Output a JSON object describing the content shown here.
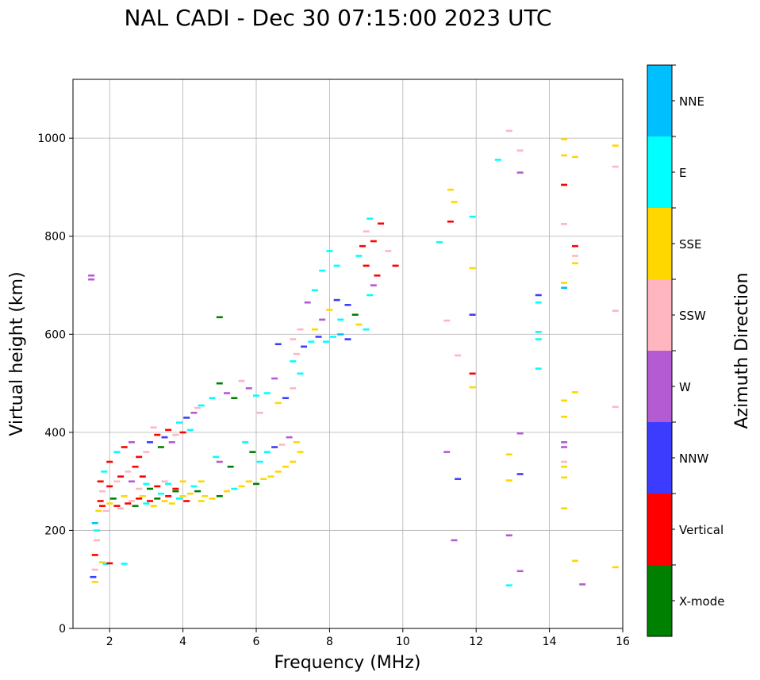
{
  "chart_data": {
    "type": "scatter",
    "title": "NAL CADI - Dec 30 07:15:00 2023 UTC",
    "xlabel": "Frequency (MHz)",
    "ylabel": "Virtual height (km)",
    "xlim": [
      1,
      16
    ],
    "ylim": [
      0,
      1120
    ],
    "xticks": [
      2,
      4,
      6,
      8,
      10,
      12,
      14,
      16
    ],
    "yticks": [
      0,
      200,
      400,
      600,
      800,
      1000
    ],
    "grid": true,
    "colorbar": {
      "label": "Azimuth Direction",
      "categories": [
        "X-mode",
        "Vertical",
        "NNW",
        "W",
        "SSW",
        "SSE",
        "E",
        "NNE"
      ],
      "colors": [
        "#008000",
        "#ff0000",
        "#3c3cff",
        "#b45ad2",
        "#ffb6c1",
        "#ffd700",
        "#00ffff",
        "#00bfff"
      ]
    },
    "points": [
      [
        1.5,
        720,
        3
      ],
      [
        1.5,
        712,
        3
      ],
      [
        1.55,
        105,
        2
      ],
      [
        1.6,
        95,
        5
      ],
      [
        1.6,
        120,
        4
      ],
      [
        1.6,
        150,
        1
      ],
      [
        1.65,
        180,
        4
      ],
      [
        1.65,
        200,
        6
      ],
      [
        1.6,
        215,
        7
      ],
      [
        1.7,
        240,
        5
      ],
      [
        1.75,
        260,
        1
      ],
      [
        1.8,
        280,
        4
      ],
      [
        1.75,
        300,
        1
      ],
      [
        1.85,
        320,
        6
      ],
      [
        1.8,
        135,
        5
      ],
      [
        1.9,
        132,
        6
      ],
      [
        2.0,
        133,
        1
      ],
      [
        2.4,
        132,
        6
      ],
      [
        1.8,
        250,
        1
      ],
      [
        1.9,
        240,
        4
      ],
      [
        2.0,
        255,
        5
      ],
      [
        2.1,
        265,
        0
      ],
      [
        2.2,
        250,
        1
      ],
      [
        2.3,
        245,
        4
      ],
      [
        2.4,
        270,
        5
      ],
      [
        2.5,
        255,
        1
      ],
      [
        2.6,
        260,
        4
      ],
      [
        2.7,
        250,
        0
      ],
      [
        2.8,
        265,
        1
      ],
      [
        2.9,
        270,
        5
      ],
      [
        3.0,
        255,
        6
      ],
      [
        3.1,
        260,
        1
      ],
      [
        3.2,
        250,
        5
      ],
      [
        3.3,
        265,
        0
      ],
      [
        3.4,
        275,
        6
      ],
      [
        3.5,
        260,
        5
      ],
      [
        3.6,
        270,
        1
      ],
      [
        3.7,
        255,
        5
      ],
      [
        3.8,
        280,
        0
      ],
      [
        3.9,
        265,
        6
      ],
      [
        4.0,
        270,
        5
      ],
      [
        4.1,
        260,
        1
      ],
      [
        4.2,
        275,
        5
      ],
      [
        4.3,
        290,
        6
      ],
      [
        4.4,
        280,
        0
      ],
      [
        4.5,
        300,
        5
      ],
      [
        4.6,
        270,
        5
      ],
      [
        2.0,
        290,
        1
      ],
      [
        2.2,
        300,
        4
      ],
      [
        2.3,
        310,
        1
      ],
      [
        2.5,
        320,
        4
      ],
      [
        2.6,
        300,
        3
      ],
      [
        2.7,
        330,
        1
      ],
      [
        2.8,
        285,
        4
      ],
      [
        2.9,
        310,
        1
      ],
      [
        3.0,
        295,
        6
      ],
      [
        3.1,
        285,
        0
      ],
      [
        3.3,
        290,
        1
      ],
      [
        3.5,
        300,
        4
      ],
      [
        3.6,
        295,
        6
      ],
      [
        3.8,
        285,
        1
      ],
      [
        4.0,
        300,
        5
      ],
      [
        2.0,
        340,
        1
      ],
      [
        2.2,
        360,
        6
      ],
      [
        2.4,
        370,
        1
      ],
      [
        2.6,
        380,
        3
      ],
      [
        2.8,
        350,
        1
      ],
      [
        3.0,
        360,
        4
      ],
      [
        3.1,
        380,
        2
      ],
      [
        3.2,
        410,
        4
      ],
      [
        3.3,
        395,
        1
      ],
      [
        3.4,
        370,
        0
      ],
      [
        3.5,
        390,
        2
      ],
      [
        3.6,
        405,
        1
      ],
      [
        3.7,
        380,
        3
      ],
      [
        3.8,
        395,
        4
      ],
      [
        3.9,
        420,
        6
      ],
      [
        4.0,
        400,
        1
      ],
      [
        4.1,
        430,
        2
      ],
      [
        4.2,
        405,
        6
      ],
      [
        4.3,
        440,
        3
      ],
      [
        4.4,
        450,
        4
      ],
      [
        4.5,
        455,
        6
      ],
      [
        4.8,
        470,
        6
      ],
      [
        5.0,
        500,
        0
      ],
      [
        5.2,
        480,
        3
      ],
      [
        5.4,
        470,
        0
      ],
      [
        5.6,
        505,
        4
      ],
      [
        5.8,
        490,
        3
      ],
      [
        6.0,
        475,
        6
      ],
      [
        6.1,
        440,
        4
      ],
      [
        6.3,
        480,
        6
      ],
      [
        6.5,
        510,
        3
      ],
      [
        6.6,
        460,
        5
      ],
      [
        6.8,
        470,
        2
      ],
      [
        7.0,
        490,
        4
      ],
      [
        7.2,
        520,
        6
      ],
      [
        7.0,
        545,
        6
      ],
      [
        7.1,
        560,
        4
      ],
      [
        7.3,
        575,
        2
      ],
      [
        7.5,
        585,
        6
      ],
      [
        7.7,
        595,
        2
      ],
      [
        7.9,
        585,
        6
      ],
      [
        8.1,
        595,
        6
      ],
      [
        8.3,
        600,
        7
      ],
      [
        8.5,
        590,
        2
      ],
      [
        7.6,
        610,
        5
      ],
      [
        7.8,
        630,
        3
      ],
      [
        8.0,
        650,
        5
      ],
      [
        8.2,
        670,
        2
      ],
      [
        8.3,
        630,
        6
      ],
      [
        8.5,
        660,
        2
      ],
      [
        8.7,
        640,
        0
      ],
      [
        8.8,
        620,
        5
      ],
      [
        9.0,
        610,
        6
      ],
      [
        9.1,
        680,
        6
      ],
      [
        9.2,
        700,
        3
      ],
      [
        9.3,
        720,
        1
      ],
      [
        9.0,
        740,
        1
      ],
      [
        8.8,
        760,
        6
      ],
      [
        8.9,
        780,
        1
      ],
      [
        9.2,
        790,
        1
      ],
      [
        9.0,
        810,
        4
      ],
      [
        9.1,
        836,
        6
      ],
      [
        9.4,
        826,
        1
      ],
      [
        9.6,
        770,
        4
      ],
      [
        9.8,
        740,
        1
      ],
      [
        8.2,
        740,
        6
      ],
      [
        8.0,
        770,
        6
      ],
      [
        7.8,
        730,
        6
      ],
      [
        7.6,
        690,
        6
      ],
      [
        7.4,
        665,
        3
      ],
      [
        7.2,
        610,
        4
      ],
      [
        7.0,
        590,
        4
      ],
      [
        6.6,
        580,
        2
      ],
      [
        5.0,
        635,
        0
      ],
      [
        4.5,
        260,
        5
      ],
      [
        4.8,
        265,
        5
      ],
      [
        5.0,
        270,
        0
      ],
      [
        5.2,
        280,
        5
      ],
      [
        5.4,
        285,
        6
      ],
      [
        5.6,
        290,
        5
      ],
      [
        5.8,
        300,
        5
      ],
      [
        6.0,
        295,
        0
      ],
      [
        6.2,
        305,
        5
      ],
      [
        6.4,
        310,
        5
      ],
      [
        6.6,
        320,
        5
      ],
      [
        6.8,
        330,
        5
      ],
      [
        7.0,
        340,
        5
      ],
      [
        7.2,
        360,
        5
      ],
      [
        7.1,
        380,
        5
      ],
      [
        6.9,
        390,
        3
      ],
      [
        6.7,
        375,
        4
      ],
      [
        6.5,
        370,
        2
      ],
      [
        6.3,
        360,
        6
      ],
      [
        6.1,
        340,
        6
      ],
      [
        5.9,
        360,
        0
      ],
      [
        5.7,
        380,
        6
      ],
      [
        5.3,
        330,
        0
      ],
      [
        5.0,
        340,
        3
      ],
      [
        4.9,
        350,
        6
      ],
      [
        11.0,
        788,
        6
      ],
      [
        11.2,
        628,
        4
      ],
      [
        11.3,
        895,
        5
      ],
      [
        11.4,
        870,
        5
      ],
      [
        11.3,
        830,
        1
      ],
      [
        11.5,
        557,
        4
      ],
      [
        11.2,
        360,
        3
      ],
      [
        11.4,
        180,
        3
      ],
      [
        11.5,
        305,
        2
      ],
      [
        11.9,
        840,
        6
      ],
      [
        11.9,
        735,
        5
      ],
      [
        11.9,
        640,
        2
      ],
      [
        11.9,
        520,
        1
      ],
      [
        11.9,
        492,
        5
      ],
      [
        12.6,
        956,
        6
      ],
      [
        12.9,
        1015,
        4
      ],
      [
        12.9,
        355,
        5
      ],
      [
        12.9,
        302,
        5
      ],
      [
        12.9,
        190,
        3
      ],
      [
        12.9,
        88,
        6
      ],
      [
        13.2,
        975,
        4
      ],
      [
        13.2,
        930,
        3
      ],
      [
        13.2,
        398,
        3
      ],
      [
        13.2,
        315,
        2
      ],
      [
        13.2,
        117,
        3
      ],
      [
        13.7,
        680,
        2
      ],
      [
        13.7,
        665,
        6
      ],
      [
        13.7,
        605,
        6
      ],
      [
        13.7,
        590,
        6
      ],
      [
        13.7,
        530,
        6
      ],
      [
        14.4,
        998,
        5
      ],
      [
        14.4,
        965,
        5
      ],
      [
        14.4,
        905,
        1
      ],
      [
        14.4,
        825,
        4
      ],
      [
        14.4,
        705,
        5
      ],
      [
        14.4,
        695,
        7
      ],
      [
        14.4,
        465,
        5
      ],
      [
        14.4,
        432,
        5
      ],
      [
        14.4,
        380,
        3
      ],
      [
        14.4,
        370,
        3
      ],
      [
        14.4,
        340,
        4
      ],
      [
        14.4,
        330,
        5
      ],
      [
        14.4,
        308,
        5
      ],
      [
        14.4,
        245,
        5
      ],
      [
        14.7,
        962,
        5
      ],
      [
        14.7,
        780,
        1
      ],
      [
        14.7,
        760,
        4
      ],
      [
        14.7,
        745,
        5
      ],
      [
        14.7,
        482,
        5
      ],
      [
        14.7,
        138,
        5
      ],
      [
        14.9,
        90,
        3
      ],
      [
        15.8,
        985,
        5
      ],
      [
        15.8,
        942,
        4
      ],
      [
        15.8,
        648,
        4
      ],
      [
        15.8,
        452,
        4
      ],
      [
        15.8,
        125,
        5
      ]
    ]
  }
}
